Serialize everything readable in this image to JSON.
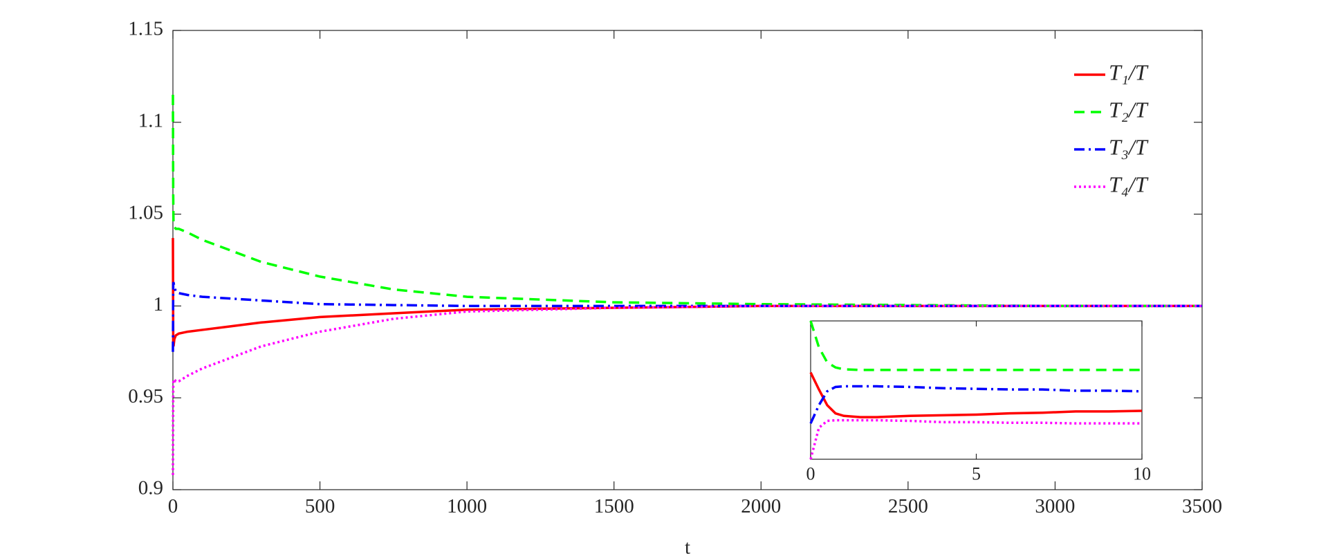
{
  "chart_data": [
    {
      "type": "line",
      "x_label": "t",
      "x": [
        0,
        1,
        2,
        5,
        10,
        20,
        50,
        100,
        200,
        300,
        500,
        750,
        1000,
        1500,
        2000,
        2500,
        3000,
        3500
      ],
      "series": [
        {
          "name": "T₁/T",
          "color": "#ff0000",
          "style": "solid",
          "values": [
            1.037,
            0.98,
            0.978,
            0.982,
            0.984,
            0.985,
            0.986,
            0.987,
            0.989,
            0.991,
            0.994,
            0.996,
            0.998,
            0.999,
            1,
            1,
            1,
            1
          ]
        },
        {
          "name": "T₂/T",
          "color": "#00ff00",
          "style": "dashed",
          "values": [
            1.115,
            1.06,
            1.045,
            1.043,
            1.042,
            1.042,
            1.04,
            1.036,
            1.03,
            1.024,
            1.016,
            1.009,
            1.005,
            1.002,
            1.001,
            1.0005,
            1,
            1
          ]
        },
        {
          "name": "T₃/T",
          "color": "#0000ff",
          "style": "dashdot",
          "values": [
            0.975,
            1.012,
            1.013,
            1.01,
            1.008,
            1.007,
            1.006,
            1.005,
            1.004,
            1.003,
            1.001,
            1.0005,
            1,
            1,
            1,
            1,
            1,
            1
          ]
        },
        {
          "name": "T₄/T",
          "color": "#ff00ff",
          "style": "dotted",
          "values": [
            0.908,
            0.955,
            0.96,
            0.96,
            0.959,
            0.959,
            0.962,
            0.966,
            0.972,
            0.978,
            0.986,
            0.993,
            0.997,
            0.999,
            1,
            1,
            1,
            1
          ]
        }
      ],
      "xlim": [
        0,
        3500
      ],
      "xticks": [
        0,
        500,
        1000,
        1500,
        2000,
        2500,
        3000,
        3500
      ],
      "ylim": [
        0.9,
        1.15
      ],
      "yticks": [
        0.9,
        0.95,
        1,
        1.05,
        1.1,
        1.15
      ],
      "legend": "northeast"
    },
    {
      "type": "line",
      "x": [
        0,
        0.25,
        0.5,
        0.75,
        1,
        1.5,
        2,
        3,
        4,
        5,
        6,
        7,
        8,
        9,
        10
      ],
      "series": [
        {
          "color": "#ff0000",
          "style": "solid",
          "values": [
            1.038,
            1.011,
            0.986,
            0.973,
            0.969,
            0.967,
            0.967,
            0.969,
            0.97,
            0.971,
            0.973,
            0.974,
            0.976,
            0.976,
            0.977
          ]
        },
        {
          "color": "#00ff00",
          "style": "dashed",
          "values": [
            1.12,
            1.078,
            1.054,
            1.046,
            1.043,
            1.042,
            1.042,
            1.042,
            1.042,
            1.042,
            1.042,
            1.042,
            1.042,
            1.042,
            1.042
          ]
        },
        {
          "color": "#0000ff",
          "style": "dashdot",
          "values": [
            0.957,
            0.986,
            1.008,
            1.015,
            1.016,
            1.016,
            1.016,
            1.015,
            1.013,
            1.012,
            1.011,
            1.011,
            1.009,
            1.009,
            1.008
          ]
        },
        {
          "color": "#ff00ff",
          "style": "dotted",
          "values": [
            0.9,
            0.95,
            0.961,
            0.962,
            0.962,
            0.962,
            0.962,
            0.961,
            0.959,
            0.959,
            0.958,
            0.958,
            0.957,
            0.957,
            0.957
          ]
        }
      ],
      "xlim": [
        0,
        10
      ],
      "xticks": [
        0,
        5,
        10
      ],
      "ylim": [
        0.9,
        1.12
      ]
    }
  ]
}
